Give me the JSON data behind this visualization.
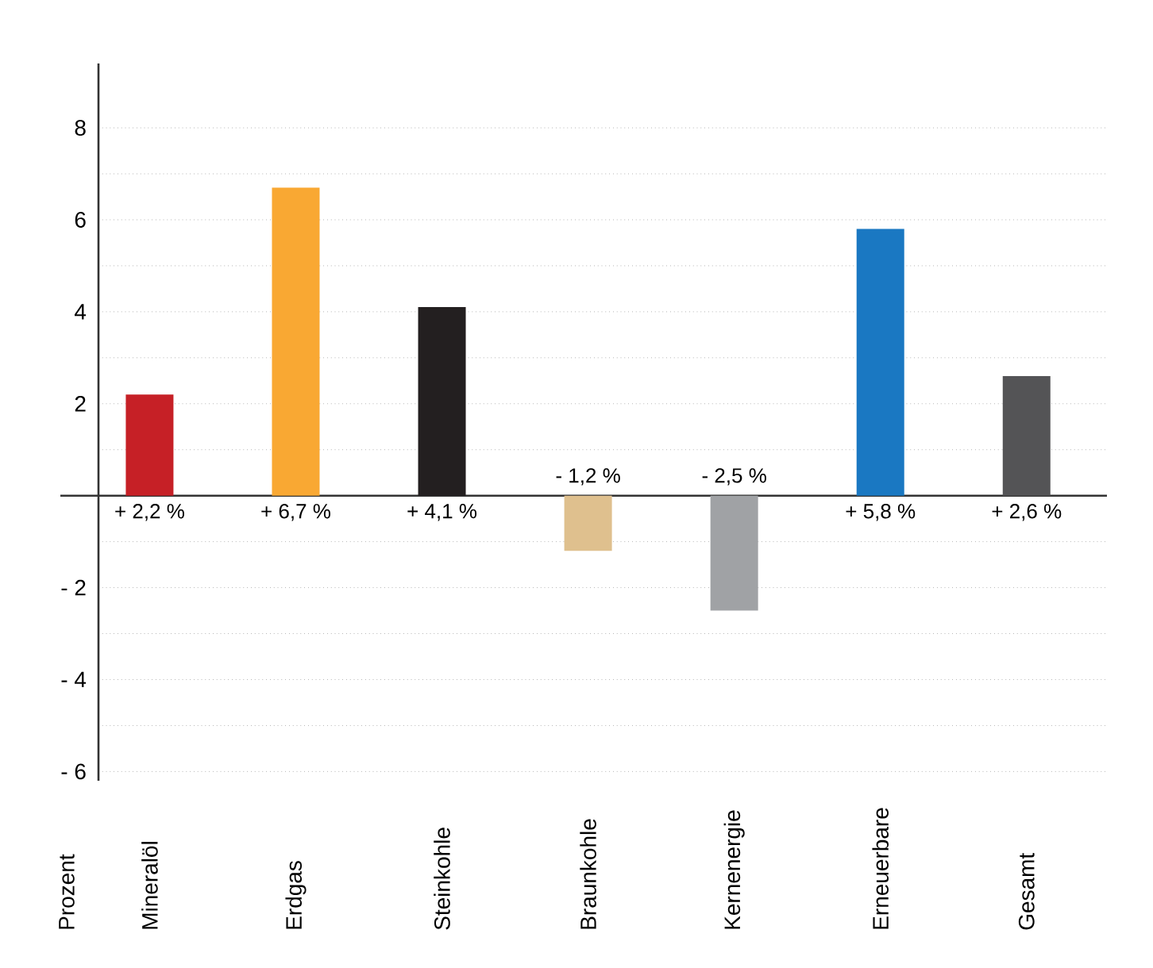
{
  "chart_data": {
    "type": "bar",
    "ylabel": "Prozent",
    "categories": [
      "Mineralöl",
      "Erdgas",
      "Steinkohle",
      "Braunkohle",
      "Kernenergie",
      "Erneuerbare",
      "Gesamt"
    ],
    "values": [
      2.2,
      6.7,
      4.1,
      -1.2,
      -2.5,
      5.8,
      2.6
    ],
    "value_labels": [
      "+ 2,2 %",
      "+ 6,7 %",
      "+ 4,1 %",
      "- 1,2 %",
      "- 2,5 %",
      "+ 5,8 %",
      "+ 2,6 %"
    ],
    "colors": [
      "#c62026",
      "#f9a833",
      "#231f20",
      "#dfc08e",
      "#a0a2a5",
      "#1a78c2",
      "#545456"
    ],
    "ylim": [
      -6.2,
      9.4
    ],
    "yticks": [
      {
        "value": -6,
        "label": "- 6"
      },
      {
        "value": -5,
        "label": null
      },
      {
        "value": -4,
        "label": "- 4"
      },
      {
        "value": -3,
        "label": null
      },
      {
        "value": -2,
        "label": "- 2"
      },
      {
        "value": -1,
        "label": null
      },
      {
        "value": 0,
        "label": null
      },
      {
        "value": 1,
        "label": null
      },
      2,
      {
        "value": 3,
        "label": null
      },
      4,
      {
        "value": 5,
        "label": null
      },
      6,
      {
        "value": 7,
        "label": null
      },
      8
    ],
    "grid": "y"
  }
}
